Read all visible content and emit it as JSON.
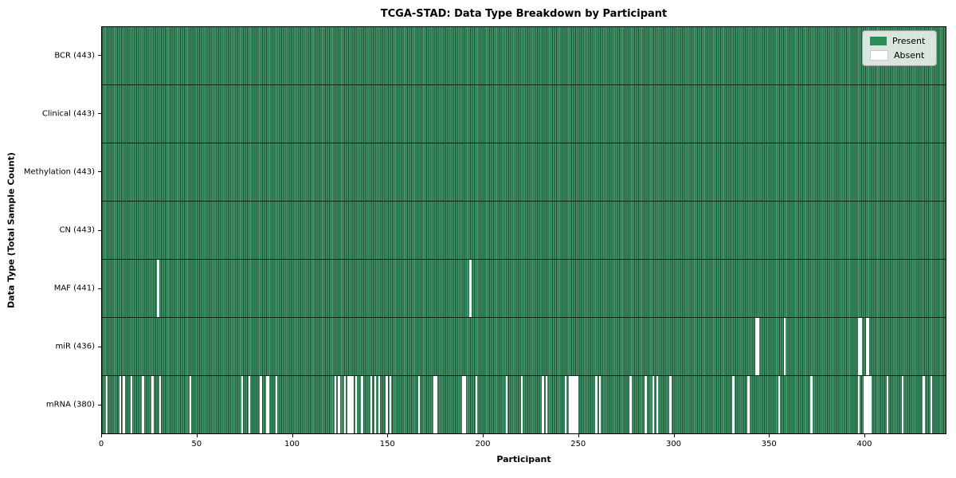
{
  "chart_data": {
    "type": "heatmap",
    "title": "TCGA-STAD: Data Type Breakdown by Participant",
    "xlabel": "Participant",
    "ylabel": "Data Type (Total Sample Count)",
    "xlim": [
      0,
      443
    ],
    "n_participants": 443,
    "x_ticks": [
      0,
      50,
      100,
      150,
      200,
      250,
      300,
      350,
      400
    ],
    "grid": false,
    "legend_position": "upper right",
    "colors": {
      "present": "#2e8b57",
      "present_stripe_light": "#44946a",
      "present_stripe_dark": "#1a5233",
      "absent": "#ffffff",
      "row_separator": "#0d2417",
      "legend_background": "#ecf0ec",
      "legend_border": "#9fa4a0"
    },
    "legend": [
      {
        "label": "Present",
        "color": "#2e8b57",
        "border": "none"
      },
      {
        "label": "Absent",
        "color": "#ffffff",
        "border": "#cccccc"
      }
    ],
    "rows": [
      {
        "label": "BCR (443)",
        "name": "BCR",
        "total": 443,
        "absent": []
      },
      {
        "label": "Clinical (443)",
        "name": "Clinical",
        "total": 443,
        "absent": []
      },
      {
        "label": "Methylation (443)",
        "name": "Methylation",
        "total": 443,
        "absent": []
      },
      {
        "label": "CN (443)",
        "name": "CN",
        "total": 443,
        "absent": []
      },
      {
        "label": "MAF (441)",
        "name": "MAF",
        "total": 441,
        "absent": [
          29,
          193
        ]
      },
      {
        "label": "miR (436)",
        "name": "miR",
        "total": 436,
        "absent": [
          343,
          344,
          358,
          397,
          398,
          401,
          402
        ]
      },
      {
        "label": "mRNA (380)",
        "name": "mRNA",
        "total": 380,
        "absent": [
          2,
          9,
          11,
          15,
          21,
          26,
          30,
          46,
          73,
          77,
          83,
          86,
          87,
          91,
          122,
          124,
          127,
          129,
          130,
          131,
          133,
          136,
          141,
          143,
          145,
          149,
          151,
          166,
          174,
          175,
          189,
          190,
          196,
          212,
          220,
          231,
          233,
          243,
          245,
          246,
          247,
          248,
          249,
          259,
          261,
          277,
          285,
          289,
          291,
          298,
          331,
          339,
          355,
          372,
          397,
          400,
          401,
          402,
          403,
          412,
          420,
          431,
          435
        ]
      }
    ]
  }
}
